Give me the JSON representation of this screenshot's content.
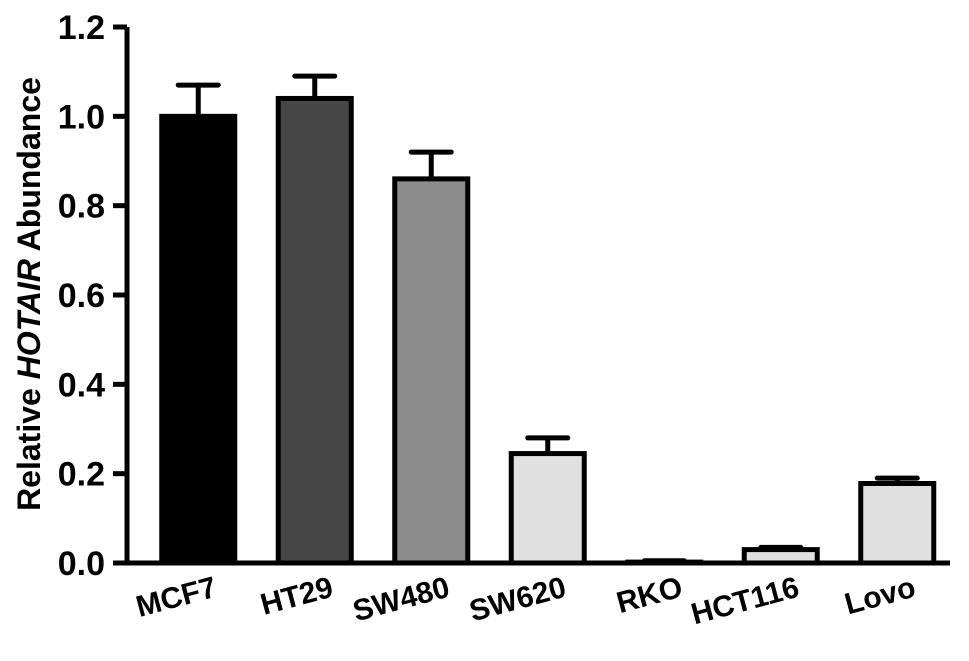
{
  "chart_data": {
    "type": "bar",
    "categories": [
      "MCF7",
      "HT29",
      "SW480",
      "SW620",
      "RKO",
      "HCT116",
      "Lovo"
    ],
    "values": [
      1.0,
      1.04,
      0.86,
      0.245,
      0.002,
      0.03,
      0.178
    ],
    "errors": [
      0.07,
      0.05,
      0.06,
      0.035,
      0.003,
      0.005,
      0.012
    ],
    "colors": [
      "#000000",
      "#474747",
      "#8c8c8c",
      "#e0e0e0",
      "#e0e0e0",
      "#e0e0e0",
      "#e0e0e0"
    ],
    "ylabel_prefix": "Relative ",
    "ylabel_italic": "HOTAIR",
    "ylabel_suffix": " Abundance",
    "ylim": [
      0,
      1.2
    ],
    "yticks": [
      0.0,
      0.2,
      0.4,
      0.6,
      0.8,
      1.0,
      1.2
    ],
    "ytick_labels": [
      "0.0",
      "0.2",
      "0.4",
      "0.6",
      "0.8",
      "1.0",
      "1.2"
    ],
    "grid": false,
    "legend": "none"
  }
}
